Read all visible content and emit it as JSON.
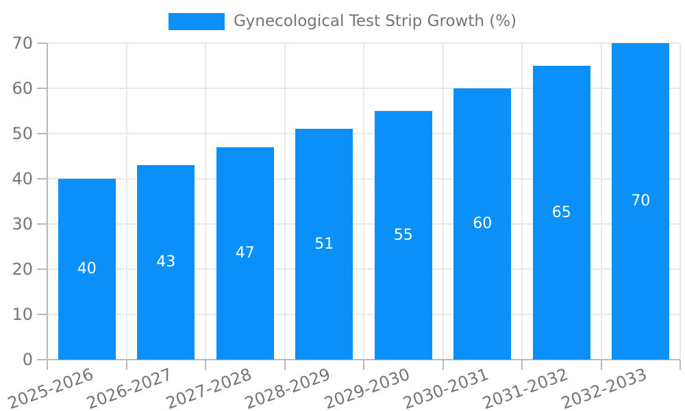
{
  "chart_data": {
    "type": "bar",
    "title": "",
    "legend_entries": [
      "Gynecological Test Strip Growth (%)"
    ],
    "legend_position": "top-center",
    "categories": [
      "2025-2026",
      "2026-2027",
      "2027-2028",
      "2028-2029",
      "2029-2030",
      "2030-2031",
      "2031-2032",
      "2032-2033"
    ],
    "values": [
      40,
      43,
      47,
      51,
      55,
      60,
      65,
      70
    ],
    "value_labels": [
      "40",
      "43",
      "47",
      "51",
      "55",
      "60",
      "65",
      "70"
    ],
    "value_label_placement": "inside-center",
    "xlabel": "",
    "ylabel": "",
    "ylim": [
      0,
      70
    ],
    "yticks": [
      0,
      10,
      20,
      30,
      40,
      50,
      60,
      70
    ],
    "grid": "horizontal and vertical light gray gridlines",
    "xtick_label_rotation_deg": 20,
    "colors": {
      "bar": "#0a90f8",
      "grid": "#e8e8e8",
      "axis": "#b9b9b9",
      "tick_text": "#757575",
      "value_label_text": "#ffffff",
      "background": "#ffffff"
    }
  },
  "legend": {
    "label": "Gynecological Test Strip Growth (%)"
  }
}
